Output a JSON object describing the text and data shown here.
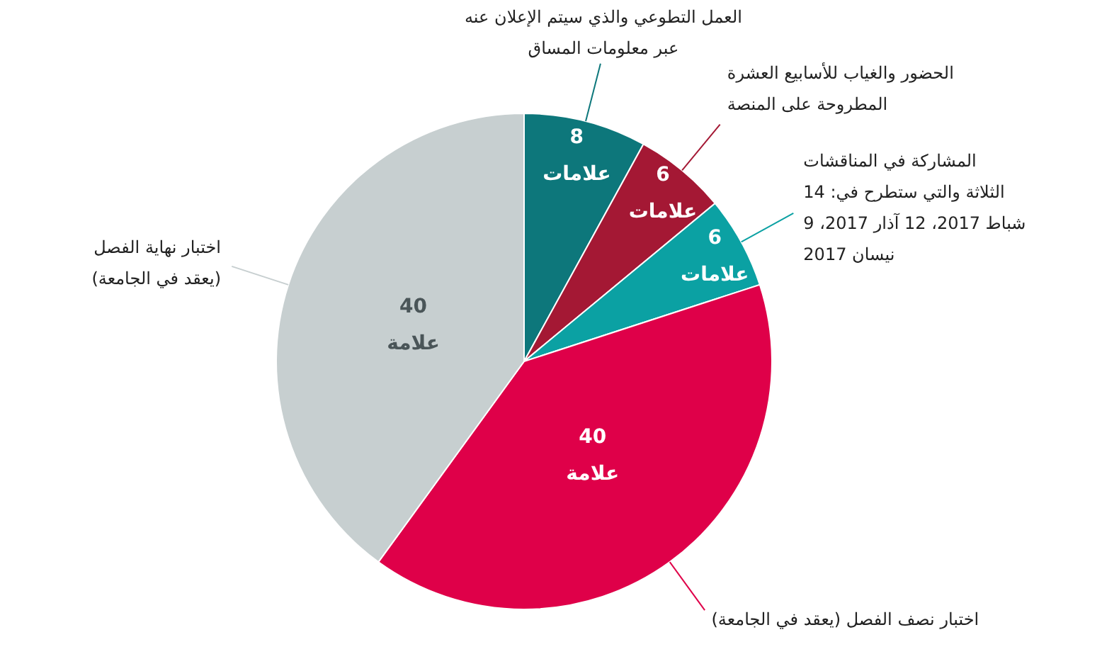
{
  "chart_data": {
    "type": "pie",
    "categories": [
      "العمل التطوعي والذي سيتم الإعلان عنه عبر معلومات المساق",
      "الحضور والغياب للأسابيع العشرة المطروحة على المنصة",
      "المشاركة في المناقشات الثلاثة والتي ستطرح في: 14 شباط 2017، 12 آذار 2017، 9 نيسان 2017",
      "اختبار نصف الفصل (يعقد في الجامعة)",
      "اختبار نهاية الفصل (يعقد في الجامعة)"
    ],
    "values": [
      8,
      6,
      6,
      40,
      40
    ],
    "colors": [
      "#0d777b",
      "#a41834",
      "#0ba1a3",
      "#df0049",
      "#c7cfd0"
    ],
    "value_labels": [
      "8 علامات",
      "6 علامات",
      "6 علامات",
      "40 علامة",
      "40 علامة"
    ]
  }
}
